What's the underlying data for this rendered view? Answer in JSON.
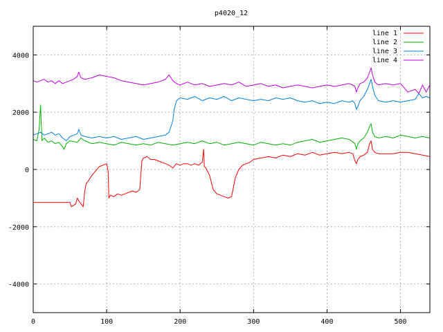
{
  "chart_data": {
    "type": "line",
    "title": "p4020_12",
    "xlabel": "",
    "ylabel": "",
    "xlim": [
      0,
      540
    ],
    "ylim": [
      -5000,
      5000
    ],
    "xticks": [
      0,
      100,
      200,
      300,
      400,
      500
    ],
    "xtick_labels": [
      "0",
      "100",
      "200",
      "300",
      "400",
      "500"
    ],
    "yticks": [
      -4000,
      -2000,
      0,
      2000,
      4000
    ],
    "ytick_labels": [
      "-4000",
      "-2000",
      "0",
      "2000",
      "4000"
    ],
    "grid": true,
    "legend_position": "top-right",
    "series": [
      {
        "name": "line 1",
        "color": "#ff0000",
        "x": [
          0,
          10,
          20,
          30,
          40,
          50,
          52,
          55,
          58,
          60,
          62,
          65,
          68,
          70,
          72,
          75,
          80,
          85,
          90,
          95,
          100,
          102,
          103,
          105,
          110,
          115,
          120,
          125,
          130,
          135,
          140,
          145,
          148,
          150,
          155,
          160,
          165,
          170,
          175,
          180,
          185,
          190,
          195,
          200,
          205,
          210,
          215,
          220,
          225,
          230,
          232,
          233,
          235,
          240,
          245,
          250,
          255,
          260,
          265,
          270,
          272,
          275,
          280,
          285,
          290,
          295,
          300,
          310,
          320,
          330,
          340,
          350,
          360,
          370,
          380,
          390,
          400,
          410,
          420,
          430,
          435,
          438,
          440,
          442,
          445,
          450,
          455,
          458,
          460,
          462,
          465,
          470,
          480,
          490,
          500,
          510,
          520,
          530,
          540
        ],
        "y": [
          -1150,
          -1150,
          -1150,
          -1150,
          -1150,
          -1150,
          -1300,
          -1250,
          -1200,
          -1000,
          -1100,
          -1200,
          -1300,
          -800,
          -500,
          -400,
          -200,
          -50,
          100,
          150,
          200,
          -50,
          -1000,
          -900,
          -950,
          -850,
          -900,
          -850,
          -800,
          -750,
          -800,
          -700,
          300,
          400,
          450,
          350,
          350,
          300,
          250,
          200,
          150,
          50,
          200,
          150,
          200,
          200,
          150,
          200,
          150,
          250,
          700,
          100,
          50,
          -200,
          -700,
          -850,
          -900,
          -950,
          -1000,
          -950,
          -700,
          -300,
          0,
          150,
          200,
          250,
          350,
          400,
          450,
          400,
          500,
          450,
          550,
          500,
          600,
          500,
          550,
          600,
          550,
          600,
          550,
          300,
          200,
          350,
          450,
          500,
          600,
          900,
          1000,
          700,
          600,
          550,
          550,
          550,
          600,
          600,
          550,
          500,
          450
        ]
      },
      {
        "name": "line 2",
        "color": "#00b000",
        "x": [
          0,
          5,
          8,
          10,
          12,
          15,
          20,
          25,
          30,
          35,
          40,
          42,
          45,
          50,
          60,
          65,
          70,
          80,
          90,
          100,
          110,
          120,
          130,
          140,
          150,
          160,
          170,
          180,
          190,
          200,
          210,
          220,
          230,
          240,
          250,
          260,
          270,
          280,
          290,
          300,
          310,
          320,
          330,
          340,
          350,
          360,
          370,
          380,
          390,
          400,
          410,
          420,
          430,
          438,
          440,
          442,
          445,
          450,
          455,
          458,
          460,
          462,
          465,
          470,
          480,
          490,
          500,
          510,
          520,
          530,
          540
        ],
        "y": [
          1050,
          1000,
          1400,
          2250,
          1000,
          1100,
          950,
          1000,
          900,
          950,
          800,
          700,
          900,
          1000,
          950,
          1100,
          1000,
          900,
          950,
          900,
          850,
          950,
          900,
          850,
          900,
          850,
          950,
          900,
          850,
          900,
          950,
          900,
          1000,
          900,
          950,
          850,
          900,
          950,
          900,
          850,
          950,
          900,
          850,
          900,
          850,
          950,
          1000,
          1050,
          950,
          1000,
          1050,
          1100,
          1050,
          900,
          700,
          900,
          1000,
          1100,
          1300,
          1500,
          1600,
          1300,
          1150,
          1100,
          1150,
          1100,
          1200,
          1150,
          1100,
          1150,
          1100
        ]
      },
      {
        "name": "line 3",
        "color": "#0080e0",
        "x": [
          0,
          5,
          10,
          15,
          20,
          25,
          30,
          35,
          40,
          45,
          50,
          55,
          60,
          62,
          65,
          70,
          80,
          90,
          100,
          110,
          120,
          130,
          140,
          150,
          160,
          170,
          180,
          185,
          190,
          192,
          195,
          200,
          210,
          220,
          230,
          240,
          250,
          260,
          270,
          280,
          290,
          300,
          310,
          320,
          330,
          340,
          350,
          360,
          370,
          380,
          390,
          400,
          410,
          420,
          430,
          435,
          438,
          440,
          442,
          445,
          450,
          455,
          458,
          460,
          462,
          465,
          470,
          480,
          490,
          500,
          510,
          520,
          525,
          530,
          535,
          540
        ],
        "y": [
          1200,
          1250,
          1300,
          1200,
          1250,
          1300,
          1200,
          1250,
          1100,
          1000,
          1150,
          1200,
          1250,
          1400,
          1200,
          1150,
          1100,
          1150,
          1100,
          1150,
          1050,
          1100,
          1150,
          1050,
          1100,
          1150,
          1200,
          1300,
          1700,
          2100,
          2400,
          2500,
          2450,
          2550,
          2400,
          2500,
          2450,
          2550,
          2400,
          2500,
          2450,
          2400,
          2450,
          2400,
          2500,
          2450,
          2500,
          2400,
          2350,
          2400,
          2300,
          2350,
          2300,
          2400,
          2350,
          2400,
          2300,
          2100,
          2200,
          2400,
          2550,
          2800,
          3000,
          3150,
          2900,
          2600,
          2400,
          2350,
          2400,
          2350,
          2400,
          2450,
          2650,
          2500,
          2550,
          2500
        ]
      },
      {
        "name": "line 4",
        "color": "#c000e0",
        "x": [
          0,
          5,
          10,
          15,
          20,
          25,
          30,
          35,
          40,
          45,
          50,
          55,
          60,
          62,
          65,
          70,
          80,
          90,
          100,
          110,
          120,
          130,
          140,
          150,
          160,
          170,
          180,
          185,
          190,
          195,
          200,
          210,
          220,
          230,
          240,
          250,
          260,
          270,
          280,
          290,
          300,
          310,
          320,
          330,
          340,
          350,
          360,
          370,
          380,
          390,
          400,
          410,
          420,
          430,
          435,
          438,
          440,
          442,
          445,
          450,
          455,
          458,
          460,
          462,
          465,
          470,
          480,
          490,
          500,
          510,
          520,
          525,
          530,
          535,
          540
        ],
        "y": [
          3100,
          3050,
          3100,
          3150,
          3050,
          3100,
          3000,
          3100,
          3000,
          3050,
          3100,
          3150,
          3250,
          3400,
          3200,
          3150,
          3200,
          3300,
          3250,
          3200,
          3100,
          3050,
          3000,
          2950,
          3000,
          3050,
          3150,
          3300,
          3100,
          3000,
          2950,
          3050,
          2950,
          3000,
          2900,
          2950,
          3000,
          2950,
          3050,
          2900,
          2950,
          3000,
          2900,
          2950,
          2850,
          2900,
          2950,
          2900,
          2850,
          2900,
          2950,
          2900,
          2950,
          3000,
          2950,
          2900,
          2700,
          2850,
          3000,
          3050,
          3200,
          3400,
          3550,
          3300,
          3050,
          2950,
          3000,
          2950,
          3000,
          2700,
          2800,
          2650,
          2950,
          2700,
          2950
        ]
      }
    ]
  }
}
